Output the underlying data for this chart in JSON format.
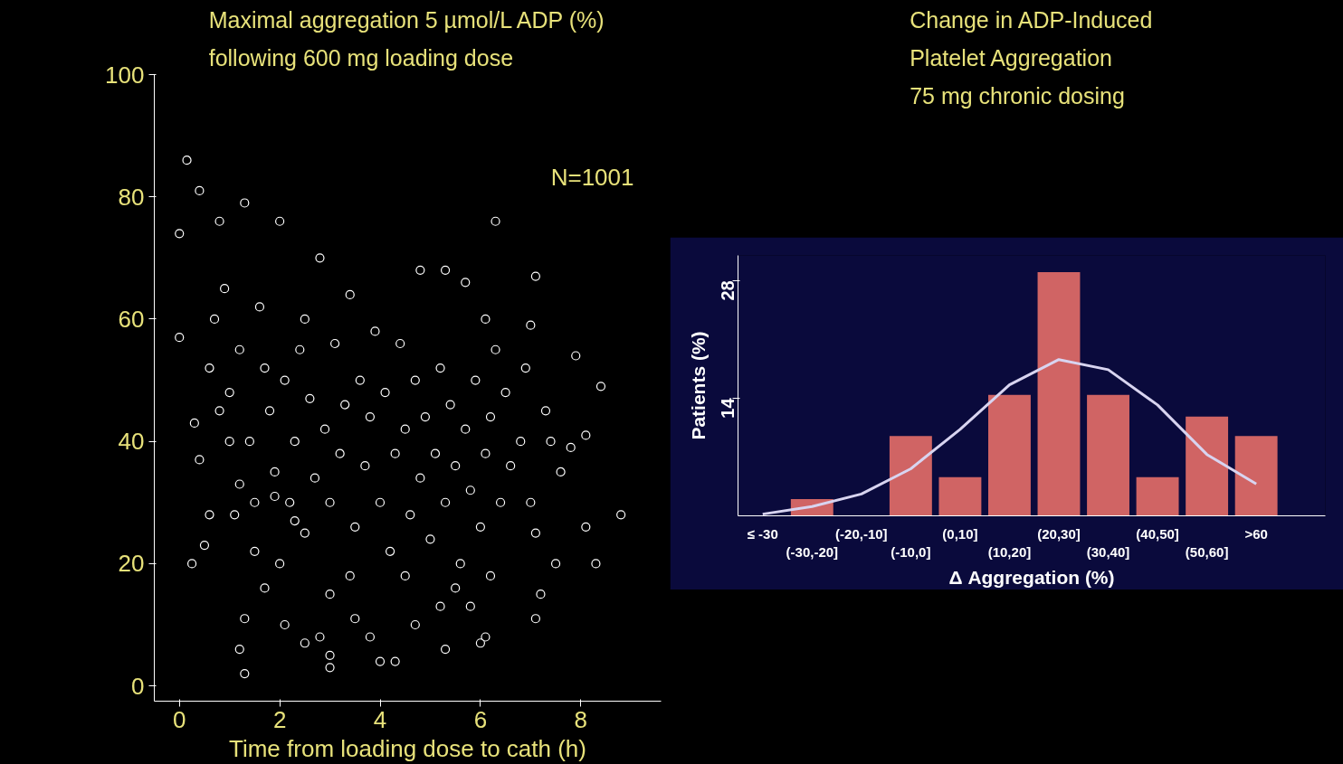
{
  "chart_data": [
    {
      "type": "scatter",
      "title": "Maximal aggregation 5 µmol/L ADP (%)\nfollowing 600 mg loading dose",
      "xlabel": "Time from loading dose to cath (h)",
      "annotations": [
        "N=1001"
      ],
      "xlim": [
        -0.5,
        9.6
      ],
      "ylim": [
        -2.5,
        100
      ],
      "xticks": [
        0,
        2,
        4,
        6,
        8
      ],
      "yticks": [
        0,
        20,
        40,
        60,
        80,
        100
      ],
      "grid": false,
      "marker": "circle",
      "series": [
        {
          "color": "#ffffff",
          "x": [
            0.15,
            0.4,
            0,
            0.8,
            1.3,
            2,
            6.3,
            0,
            0.25,
            1.2,
            1.3,
            3,
            3,
            4,
            4.3,
            5.3,
            8.8,
            8.3,
            8.1,
            8.4,
            8.1,
            7.9,
            7.1,
            7,
            5.3,
            4.8,
            5.7,
            6.1,
            6.3,
            7.2,
            7.1,
            6.2,
            6.1,
            6,
            5.8,
            5.5,
            5.2,
            4.5,
            4.7,
            3.8,
            3.5,
            2.8,
            2.5,
            2.1,
            1.7,
            1.5,
            1.3,
            1.1,
            0.5,
            0.4,
            0.3,
            0.6,
            0.7,
            0.9,
            1,
            1.2,
            1.4,
            1.6,
            1.8,
            1.9,
            2.1,
            2.2,
            2.3,
            2.4,
            2.5,
            2.6,
            2.7,
            2.8,
            2.9,
            3.0,
            3.1,
            3.2,
            3.3,
            3.4,
            3.5,
            3.6,
            3.7,
            3.8,
            3.9,
            4.0,
            4.1,
            4.2,
            4.3,
            4.4,
            4.5,
            4.6,
            4.7,
            4.8,
            4.9,
            5.0,
            5.1,
            5.2,
            5.3,
            5.4,
            5.5,
            5.6,
            5.7,
            5.8,
            5.9,
            6.0,
            6.1,
            6.2,
            6.4,
            6.5,
            6.6,
            6.8,
            6.9,
            7.0,
            7.1,
            7.3,
            7.4,
            7.5,
            7.6,
            7.8,
            1.5,
            1.0,
            2.0,
            3.0,
            2.5,
            0.6,
            1.7,
            0.8,
            1.2,
            2.3,
            3.4,
            1.9
          ],
          "values": [
            86,
            81,
            74,
            76,
            79,
            76,
            76,
            57,
            20,
            6,
            2,
            3,
            5,
            4,
            4,
            6,
            28,
            20,
            26,
            49,
            41,
            54,
            67,
            59,
            68,
            68,
            66,
            60,
            55,
            15,
            11,
            18,
            8,
            7,
            13,
            16,
            13,
            18,
            10,
            8,
            11,
            8,
            7,
            10,
            16,
            22,
            11,
            28,
            23,
            37,
            43,
            52,
            60,
            65,
            48,
            55,
            40,
            62,
            45,
            35,
            50,
            30,
            40,
            55,
            25,
            47,
            34,
            70,
            42,
            30,
            56,
            38,
            46,
            64,
            26,
            50,
            36,
            44,
            58,
            30,
            48,
            22,
            38,
            56,
            42,
            28,
            50,
            34,
            44,
            24,
            38,
            52,
            30,
            46,
            36,
            20,
            42,
            32,
            50,
            26,
            38,
            44,
            30,
            48,
            36,
            40,
            52,
            30,
            25,
            45,
            40,
            20,
            35,
            39,
            30,
            40,
            20,
            15,
            60,
            28,
            52,
            45,
            33,
            27,
            18,
            31
          ]
        }
      ]
    },
    {
      "type": "bar",
      "title": "Change in ADP-Induced\nPlatelet Aggregation\n75 mg chronic dosing",
      "xlabel": "Δ Aggregation (%)",
      "ylabel": "Patients (%)",
      "categories": [
        "≤ -30",
        "(-30,-20]",
        "(-20,-10]",
        "(-10,0]",
        "(0,10]",
        "(10,20]",
        "(20,30]",
        "(30,40]",
        "(40,50]",
        "(50,60]",
        ">60"
      ],
      "ylim": [
        0,
        31
      ],
      "yticks": [
        14,
        28
      ],
      "grid": false,
      "series": [
        {
          "type": "bar",
          "color": "#d06464",
          "values": [
            0,
            2,
            0,
            9.5,
            4.6,
            14.4,
            29,
            14.4,
            4.6,
            11.8,
            9.5
          ]
        },
        {
          "type": "line",
          "color": "#d8d4f0",
          "values": [
            0.2,
            1.1,
            2.6,
            5.6,
            10.3,
            15.6,
            18.6,
            17.4,
            13.2,
            7.3,
            3.8
          ]
        }
      ]
    }
  ]
}
